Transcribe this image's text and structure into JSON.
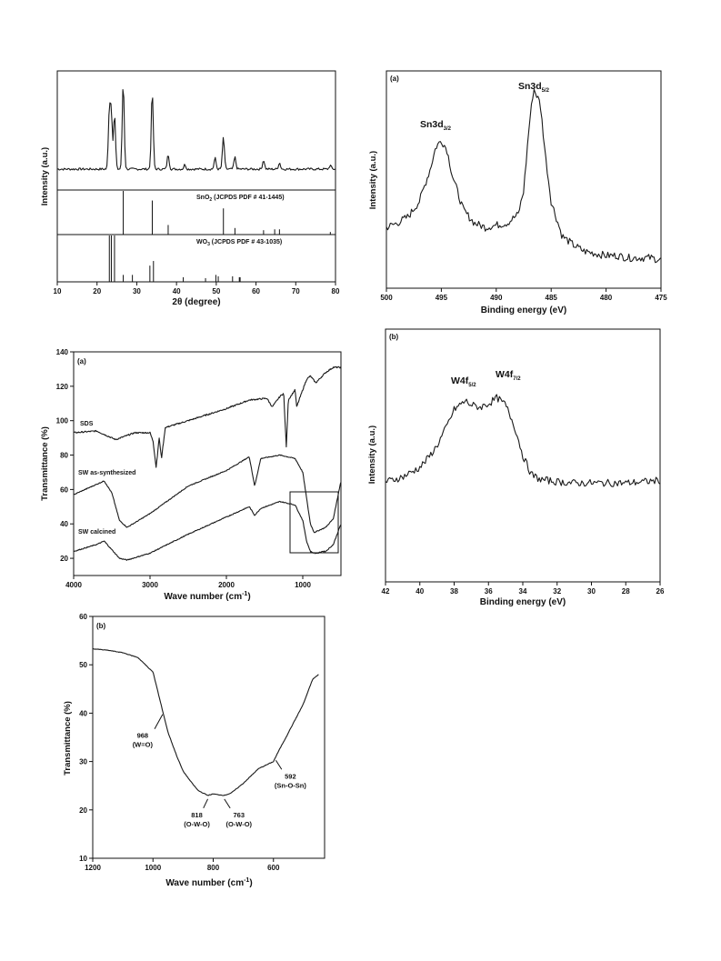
{
  "chart_data": [
    {
      "type": "line",
      "panel": "",
      "xlabel": "2θ (degree)",
      "ylabel": "Intensity (a.u.)",
      "xlim": [
        10,
        80
      ],
      "xticks": [
        "10",
        "20",
        "30",
        "40",
        "50",
        "60",
        "70",
        "80"
      ],
      "references": [
        {
          "name": "SnO2 (JCPDS PDF # 41-1445)",
          "label_main": "SnO",
          "label_sub": "2",
          "label_rest": " (JCPDS PDF # 41-1445)",
          "peaks": [
            [
              26.6,
              1.0
            ],
            [
              33.9,
              0.78
            ],
            [
              37.9,
              0.22
            ],
            [
              51.8,
              0.6
            ],
            [
              54.7,
              0.15
            ],
            [
              61.9,
              0.1
            ],
            [
              64.7,
              0.12
            ],
            [
              65.9,
              0.12
            ],
            [
              78.7,
              0.06
            ]
          ]
        },
        {
          "name": "WO3 (JCPDS PDF # 43-1035)",
          "label_main": "WO",
          "label_sub": "3",
          "label_rest": " (JCPDS PDF # 43-1035)",
          "peaks": [
            [
              23.1,
              1.0
            ],
            [
              23.6,
              1.0
            ],
            [
              24.4,
              1.0
            ],
            [
              26.6,
              0.15
            ],
            [
              28.9,
              0.15
            ],
            [
              33.3,
              0.35
            ],
            [
              34.2,
              0.45
            ],
            [
              41.7,
              0.1
            ],
            [
              47.3,
              0.08
            ],
            [
              49.9,
              0.15
            ],
            [
              50.5,
              0.12
            ],
            [
              54.1,
              0.12
            ],
            [
              55.8,
              0.1
            ],
            [
              56.0,
              0.1
            ]
          ]
        }
      ],
      "pattern_peaks": [
        [
          23.1,
          0.62
        ],
        [
          23.6,
          0.6
        ],
        [
          24.4,
          0.6
        ],
        [
          26.6,
          0.95
        ],
        [
          33.9,
          0.85
        ],
        [
          37.9,
          0.16
        ],
        [
          42.1,
          0.05
        ],
        [
          49.7,
          0.12
        ],
        [
          51.8,
          0.35
        ],
        [
          54.7,
          0.13
        ],
        [
          61.9,
          0.1
        ],
        [
          65.9,
          0.07
        ],
        [
          78.7,
          0.04
        ]
      ]
    },
    {
      "type": "line",
      "panel": "(a)",
      "xlabel": "Binding energy (eV)",
      "ylabel": "Intensity (a.u.)",
      "xlim": [
        500,
        475
      ],
      "xticks": [
        "500",
        "495",
        "490",
        "485",
        "480",
        "475"
      ],
      "peaks": [
        {
          "main": "Sn3d",
          "sub": "3/2",
          "x": 495.0
        },
        {
          "main": "Sn3d",
          "sub": "5/2",
          "x": 486.6
        }
      ],
      "x": [
        500,
        499,
        498,
        497,
        496,
        495.5,
        495,
        494.5,
        494,
        493,
        492,
        491,
        490,
        489,
        488,
        487.5,
        487,
        486.6,
        486,
        485.5,
        485,
        484,
        483,
        482,
        481,
        480,
        479,
        478,
        477,
        476,
        475
      ],
      "y": [
        0.28,
        0.3,
        0.33,
        0.4,
        0.55,
        0.65,
        0.68,
        0.64,
        0.52,
        0.36,
        0.3,
        0.28,
        0.29,
        0.3,
        0.34,
        0.45,
        0.75,
        0.92,
        0.85,
        0.6,
        0.4,
        0.24,
        0.2,
        0.17,
        0.16,
        0.15,
        0.15,
        0.14,
        0.14,
        0.14,
        0.13
      ]
    },
    {
      "type": "line",
      "panel": "(a)",
      "xlabel": "Wave number (cm⁻¹)",
      "ylabel": "Transmittance (%)",
      "xlim": [
        4000,
        500
      ],
      "ylim": [
        10,
        140
      ],
      "xticks": [
        "4000",
        "3000",
        "2000",
        "1000"
      ],
      "yticks": [
        "20",
        "40",
        "60",
        "80",
        "100",
        "120",
        "140"
      ],
      "series": [
        {
          "name": "SDS",
          "x": [
            4000,
            3700,
            3450,
            3200,
            3000,
            2960,
            2920,
            2880,
            2850,
            2800,
            2500,
            2000,
            1700,
            1470,
            1400,
            1300,
            1250,
            1215,
            1190,
            1100,
            1080,
            1000,
            950,
            900,
            830,
            700,
            600,
            500
          ],
          "y": [
            93,
            94,
            89,
            93,
            93,
            88,
            73,
            90,
            78,
            96,
            100,
            107,
            112,
            113,
            108,
            114,
            116,
            84,
            112,
            118,
            108,
            118,
            124,
            126,
            122,
            128,
            131,
            131
          ]
        },
        {
          "name": "SW as-synthesized",
          "x": [
            4000,
            3700,
            3600,
            3500,
            3400,
            3300,
            3000,
            2500,
            2000,
            1700,
            1630,
            1550,
            1300,
            1100,
            1000,
            950,
            900,
            850,
            800,
            750,
            700,
            600,
            500
          ],
          "y": [
            57,
            63,
            65,
            58,
            42,
            38,
            46,
            62,
            71,
            79,
            62,
            78,
            80,
            78,
            70,
            55,
            40,
            35,
            36,
            37,
            38,
            43,
            65
          ]
        },
        {
          "name": "SW calcined",
          "x": [
            4000,
            3700,
            3600,
            3500,
            3400,
            3300,
            3000,
            2500,
            2000,
            1700,
            1630,
            1550,
            1300,
            1100,
            1000,
            950,
            900,
            850,
            800,
            750,
            700,
            600,
            500
          ],
          "y": [
            24,
            28,
            30,
            25,
            20,
            19,
            23,
            34,
            44,
            50,
            45,
            49,
            53,
            51,
            42,
            30,
            24,
            23,
            23,
            24,
            24,
            28,
            40
          ]
        }
      ]
    },
    {
      "type": "line",
      "panel": "(b)",
      "xlabel": "Binding energy (eV)",
      "ylabel": "Intensity (a.u.)",
      "xlim": [
        42,
        26
      ],
      "xticks": [
        "42",
        "40",
        "38",
        "36",
        "34",
        "32",
        "30",
        "28",
        "26"
      ],
      "peaks": [
        {
          "main": "W4f",
          "sub": "5/2",
          "x": 37.3
        },
        {
          "main": "W4f",
          "sub": "7/2",
          "x": 35.5
        }
      ],
      "x": [
        42,
        41,
        40,
        39.5,
        39,
        38.5,
        38,
        37.5,
        37.3,
        37,
        36.5,
        36,
        35.5,
        35,
        34.5,
        34,
        33.5,
        33,
        32,
        31,
        30,
        29,
        28,
        27,
        26.2
      ],
      "y": [
        0.08,
        0.12,
        0.2,
        0.28,
        0.38,
        0.52,
        0.68,
        0.74,
        0.75,
        0.72,
        0.7,
        0.73,
        0.78,
        0.72,
        0.55,
        0.3,
        0.14,
        0.1,
        0.08,
        0.07,
        0.07,
        0.07,
        0.07,
        0.08,
        0.09
      ]
    },
    {
      "type": "line",
      "panel": "(b)",
      "xlabel": "Wave number (cm⁻¹)",
      "ylabel": "Transmittance (%)",
      "xlim": [
        1200,
        450
      ],
      "ylim": [
        10,
        60
      ],
      "xticks": [
        "1200",
        "1000",
        "800",
        "600"
      ],
      "yticks": [
        "10",
        "20",
        "30",
        "40",
        "50",
        "60"
      ],
      "x": [
        1200,
        1150,
        1100,
        1050,
        1000,
        970,
        950,
        920,
        900,
        870,
        850,
        818,
        800,
        790,
        763,
        740,
        700,
        650,
        600,
        580,
        550,
        500,
        470,
        450
      ],
      "y": [
        53.3,
        53.0,
        52.5,
        51.5,
        48.5,
        41,
        36,
        31,
        28,
        25.5,
        24,
        23,
        23.3,
        23.2,
        23,
        23.5,
        25.5,
        28.5,
        30,
        32.5,
        36,
        42,
        47,
        48
      ],
      "annotations": [
        {
          "text": "968",
          "sub": "(W=O)",
          "x": 968
        },
        {
          "text": "818",
          "sub": "(O-W-O)",
          "x": 818
        },
        {
          "text": "763",
          "sub": "(O-W-O)",
          "x": 763
        },
        {
          "text": "592",
          "sub": "(Sn-O-Sn)",
          "x": 592
        }
      ]
    }
  ]
}
